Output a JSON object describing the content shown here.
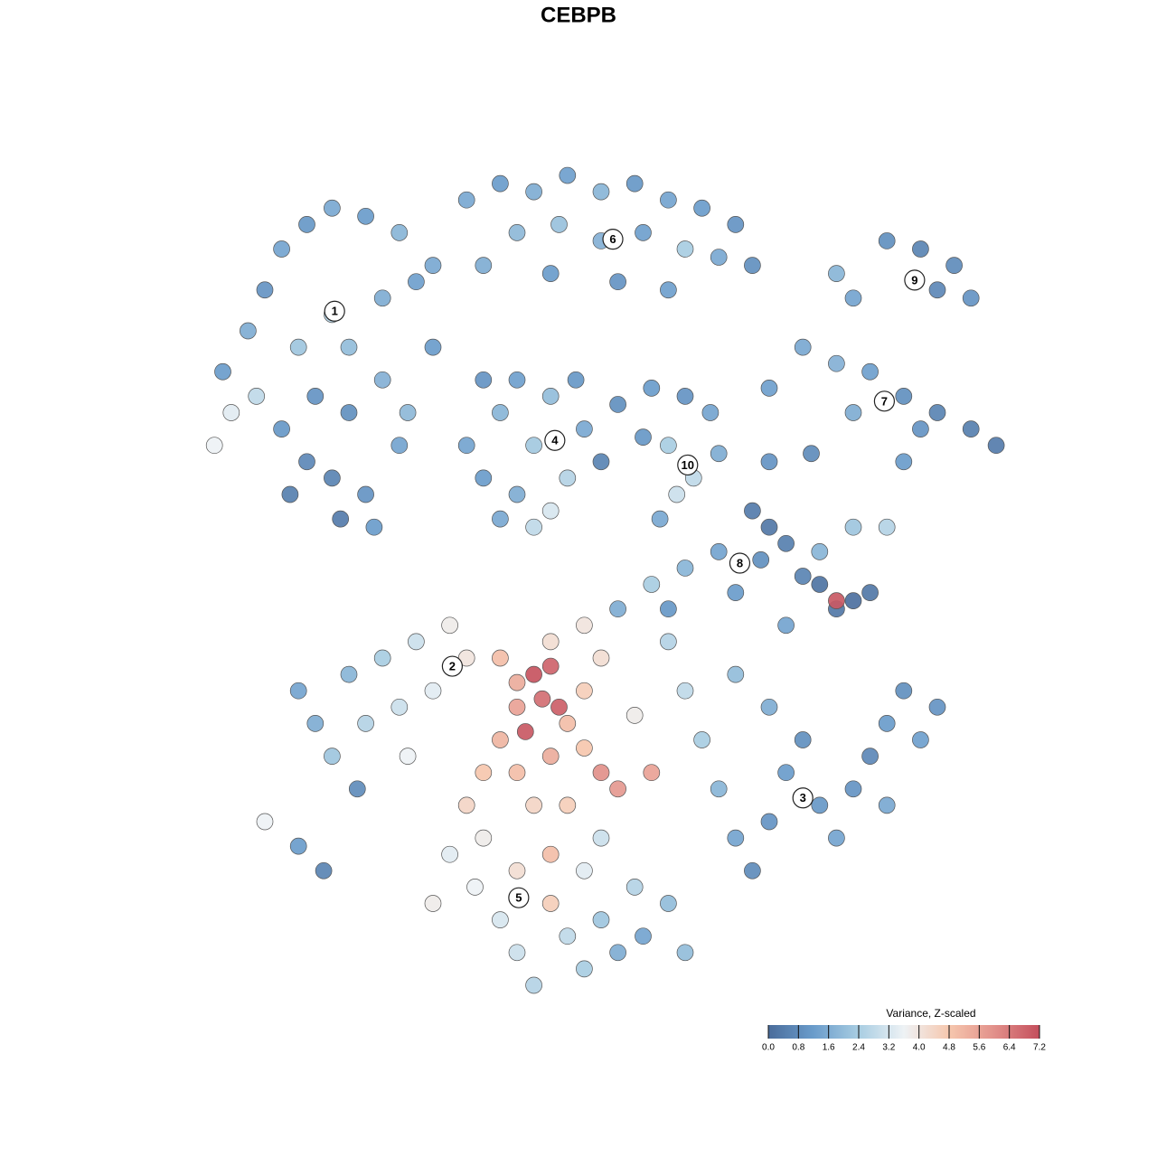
{
  "chart_data": {
    "type": "scatter",
    "title": "CEBPB",
    "xlim": [
      0,
      100
    ],
    "ylim": [
      0,
      100
    ],
    "x": [
      5,
      8,
      10,
      12,
      15,
      18,
      22,
      26,
      14,
      18,
      20,
      24,
      28,
      16,
      20,
      24,
      12,
      15,
      18,
      22,
      26,
      30,
      30,
      9,
      6,
      4,
      13,
      19,
      23,
      27,
      34,
      38,
      42,
      46,
      50,
      54,
      58,
      62,
      66,
      40,
      45,
      50,
      55,
      60,
      64,
      36,
      44,
      52,
      58,
      68,
      34,
      36,
      38,
      40,
      42,
      44,
      46,
      48,
      44,
      40,
      47,
      50,
      36,
      42,
      38,
      52,
      56,
      60,
      63,
      58,
      61,
      59,
      55,
      64,
      57,
      84,
      88,
      92,
      94,
      90,
      78,
      80,
      74,
      78,
      82,
      86,
      90,
      94,
      97,
      88,
      80,
      70,
      75,
      70,
      86,
      68,
      70,
      72,
      76,
      78,
      80,
      82,
      74,
      76,
      80,
      84,
      78,
      64,
      60,
      56,
      52,
      58,
      66,
      69,
      72,
      16,
      20,
      24,
      28,
      32,
      34,
      30,
      26,
      22,
      18,
      14,
      21,
      27,
      10,
      14,
      17,
      38,
      40,
      42,
      44,
      43,
      45,
      41,
      40,
      46,
      48,
      44,
      38,
      36,
      40,
      44,
      48,
      50,
      52,
      56,
      46,
      42,
      34,
      50,
      54,
      48,
      32,
      35,
      38,
      40,
      42,
      44,
      46,
      48,
      50,
      52,
      55,
      58,
      36,
      44,
      48,
      54,
      60,
      30,
      40,
      50,
      62,
      64,
      66,
      68,
      70,
      72,
      74,
      76,
      78,
      80,
      82,
      84,
      86,
      88,
      90,
      84,
      70,
      66,
      60,
      58
    ],
    "y": [
      75,
      80,
      85,
      90,
      93,
      95,
      94,
      92,
      78,
      82,
      78,
      84,
      86,
      72,
      70,
      74,
      68,
      64,
      62,
      60,
      66,
      78,
      88,
      72,
      70,
      66,
      60,
      57,
      56,
      70,
      96,
      98,
      97,
      99,
      97,
      98,
      96,
      95,
      93,
      92,
      93,
      91,
      92,
      90,
      89,
      88,
      87,
      86,
      85,
      88,
      66,
      62,
      70,
      60,
      66,
      72,
      62,
      68,
      58,
      74,
      74,
      64,
      74,
      56,
      57,
      71,
      73,
      72,
      70,
      66,
      62,
      60,
      67,
      65,
      57,
      91,
      90,
      88,
      84,
      85,
      87,
      84,
      78,
      76,
      75,
      72,
      70,
      68,
      66,
      68,
      70,
      73,
      65,
      64,
      64,
      58,
      56,
      54,
      49,
      46,
      47,
      48,
      50,
      53,
      56,
      56,
      47,
      53,
      51,
      49,
      46,
      46,
      48,
      52,
      44,
      32,
      38,
      40,
      42,
      44,
      40,
      36,
      34,
      32,
      28,
      36,
      24,
      28,
      20,
      17,
      14,
      40,
      37,
      38,
      39,
      35,
      34,
      31,
      34,
      32,
      36,
      42,
      30,
      26,
      26,
      28,
      29,
      26,
      24,
      26,
      22,
      22,
      22,
      40,
      33,
      44,
      16,
      12,
      8,
      4,
      0,
      10,
      6,
      2,
      8,
      4,
      6,
      10,
      18,
      16,
      14,
      12,
      4,
      10,
      14,
      18,
      30,
      24,
      18,
      14,
      20,
      26,
      30,
      22,
      18,
      24,
      28,
      32,
      36,
      30,
      34,
      22,
      34,
      38,
      36,
      42
    ],
    "values": [
      1.2,
      1.6,
      1.0,
      1.4,
      1.1,
      1.5,
      1.2,
      1.8,
      2.2,
      2.6,
      2.0,
      1.6,
      1.3,
      1.0,
      0.9,
      1.7,
      1.1,
      0.7,
      0.6,
      1.0,
      1.4,
      1.2,
      1.5,
      2.8,
      3.4,
      3.6,
      0.5,
      0.4,
      1.2,
      1.9,
      1.5,
      1.2,
      1.6,
      1.3,
      1.8,
      1.1,
      1.4,
      1.2,
      1.0,
      1.9,
      2.1,
      1.7,
      1.3,
      2.4,
      1.5,
      1.6,
      1.2,
      1.0,
      1.3,
      0.9,
      1.4,
      1.2,
      1.8,
      1.6,
      2.3,
      2.0,
      2.6,
      1.5,
      3.2,
      1.3,
      1.1,
      0.6,
      1.0,
      2.8,
      1.5,
      0.9,
      1.2,
      1.0,
      1.4,
      2.4,
      2.8,
      3.0,
      1.1,
      1.6,
      1.5,
      0.9,
      0.6,
      0.8,
      1.0,
      0.7,
      1.8,
      1.4,
      1.5,
      1.7,
      1.3,
      0.9,
      0.6,
      0.5,
      0.4,
      1.0,
      1.6,
      1.3,
      0.8,
      1.0,
      1.2,
      0.4,
      0.3,
      0.5,
      0.2,
      0.3,
      0.1,
      0.3,
      0.6,
      1.8,
      2.2,
      2.6,
      7.0,
      1.4,
      1.8,
      2.4,
      1.6,
      1.1,
      1.2,
      0.9,
      1.4,
      1.6,
      1.8,
      2.4,
      3.0,
      3.8,
      4.0,
      3.4,
      3.0,
      2.6,
      2.2,
      1.4,
      0.8,
      3.6,
      3.6,
      1.2,
      0.6,
      5.0,
      5.4,
      7.1,
      6.8,
      6.6,
      6.9,
      7.0,
      5.6,
      5.0,
      4.6,
      4.2,
      5.2,
      4.8,
      5.0,
      5.4,
      4.8,
      6.0,
      5.8,
      5.6,
      4.6,
      4.4,
      4.4,
      4.2,
      3.8,
      4.0,
      3.4,
      3.6,
      3.2,
      3.0,
      2.6,
      4.6,
      2.8,
      2.4,
      2.2,
      1.6,
      1.4,
      2.0,
      3.8,
      5.0,
      3.4,
      2.6,
      2.0,
      3.8,
      4.2,
      3.0,
      2.4,
      1.8,
      1.4,
      0.8,
      1.0,
      1.2,
      0.9,
      1.1,
      1.4,
      1.0,
      0.7,
      1.2,
      0.9,
      1.3,
      1.0,
      1.5,
      1.6,
      2.0,
      2.8,
      2.6
    ],
    "clusters": {
      "labels": [
        "1",
        "6",
        "9",
        "7",
        "4",
        "10",
        "8",
        "2",
        "3",
        "5"
      ],
      "x": [
        18.3,
        51.4,
        87.3,
        83.7,
        44.5,
        60.3,
        66.5,
        32.3,
        74.0,
        40.2
      ],
      "y": [
        82.4,
        91.2,
        86.2,
        71.4,
        66.6,
        63.6,
        51.6,
        39.0,
        22.9,
        10.7
      ]
    },
    "colorbar": {
      "title": "Variance, Z-scaled",
      "lim": [
        0,
        7.2
      ],
      "colorscale": [
        "#4a6c9b",
        "#6a9ccb",
        "#a8cde2",
        "#eef2f5",
        "#f6c7ae",
        "#e2908a",
        "#c44e5c"
      ],
      "ticks": [
        {
          "value": 0,
          "label": "0.0"
        },
        0.8,
        1.6,
        2.4,
        3.2,
        {
          "value": 4,
          "label": "4.0"
        },
        4.8,
        5.6,
        6.4,
        7.2
      ]
    }
  }
}
